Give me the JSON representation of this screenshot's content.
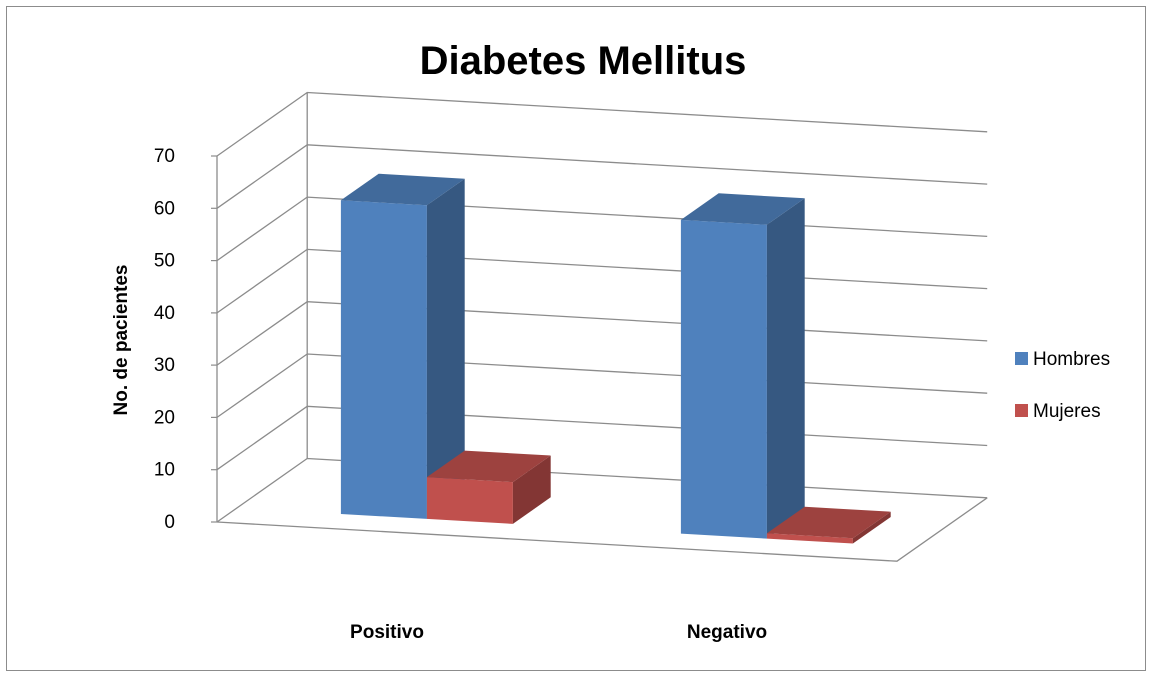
{
  "chart_data": {
    "type": "bar",
    "title": "Diabetes Mellitus",
    "xlabel": "",
    "ylabel": "No. de pacientes",
    "categories": [
      "Positivo",
      "Negativo"
    ],
    "series": [
      {
        "name": "Hombres",
        "values": [
          60,
          60
        ],
        "color": "#4f81bd"
      },
      {
        "name": "Mujeres",
        "values": [
          8,
          1
        ],
        "color": "#c0504d"
      }
    ],
    "y_ticks": [
      "0",
      "10",
      "20",
      "30",
      "40",
      "50",
      "60",
      "70"
    ],
    "ylim": [
      0,
      70
    ],
    "grid": true,
    "legend": "right",
    "style": "3d-clustered-column"
  }
}
